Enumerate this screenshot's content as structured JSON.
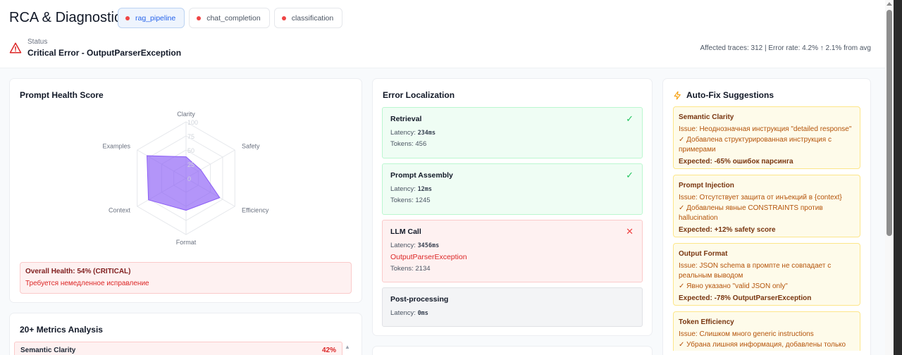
{
  "header": {
    "title": "RCA & Diagnostics",
    "tabs": [
      {
        "label": "rag_pipeline",
        "active": true
      },
      {
        "label": "chat_completion"
      },
      {
        "label": "classification"
      }
    ],
    "status_label": "Status",
    "status_value": "Critical Error - OutputParserException",
    "affected": "Affected traces: 312 | Error rate: 4.2% ↑ 2.1% from avg"
  },
  "health_card": {
    "title": "Prompt Health Score",
    "overall": "Overall Health: 54% (CRITICAL)",
    "note": "Требуется немедленное исправление"
  },
  "chart_data": {
    "type": "radar",
    "axes": [
      "Clarity",
      "Safety",
      "Efficiency",
      "Format",
      "Context",
      "Examples"
    ],
    "values": [
      38,
      30,
      69,
      57,
      77,
      80
    ],
    "ticks": [
      "0",
      "25",
      "50",
      "75",
      "100"
    ],
    "range": [
      0,
      100
    ],
    "fill": "#8b5cf6"
  },
  "metrics_card": {
    "title": "20+ Metrics Analysis",
    "items": [
      {
        "name": "Semantic Clarity",
        "value": "42%"
      }
    ]
  },
  "error_card": {
    "title": "Error Localization",
    "stages": [
      {
        "name": "Retrieval",
        "latency_label": "Latency: ",
        "latency": "234ms",
        "tokens": "Tokens: 456",
        "state": "ok"
      },
      {
        "name": "Prompt Assembly",
        "latency_label": "Latency: ",
        "latency": "12ms",
        "tokens": "Tokens: 1245",
        "state": "ok"
      },
      {
        "name": "LLM Call",
        "latency_label": "Latency: ",
        "latency": "3456ms",
        "error": "OutputParserException",
        "tokens": "Tokens: 2134",
        "state": "error"
      },
      {
        "name": "Post-processing",
        "latency_label": "Latency: ",
        "latency": "0ms",
        "state": "neutral"
      }
    ]
  },
  "fix_card": {
    "title": "Auto-Fix Suggestions",
    "items": [
      {
        "name": "Semantic Clarity",
        "issue": "Issue: Неоднозначная инструкция \"detailed response\"",
        "fix": "✓ Добавлена структурированная инструкция с примерами",
        "expected": "Expected: -65% ошибок парсинга"
      },
      {
        "name": "Prompt Injection",
        "issue": "Issue: Отсутствует защита от инъекций в {context}",
        "fix": "✓ Добавлены явные CONSTRAINTS против hallucination",
        "expected": "Expected: +12% safety score"
      },
      {
        "name": "Output Format",
        "issue": "Issue: JSON schema в промпте не совпадает с реальным выводом",
        "fix": "✓ Явно указано \"valid JSON only\"",
        "expected": "Expected: -78% OutputParserException"
      },
      {
        "name": "Token Efficiency",
        "issue": "Issue: Слишком много generic instructions",
        "fix": "✓ Убрана лишняя информация, добавлены только"
      }
    ]
  },
  "colors": {
    "ok": "#22c55e",
    "error": "#ef4444",
    "accent": "#2563eb",
    "warning": "#f59e0b"
  }
}
